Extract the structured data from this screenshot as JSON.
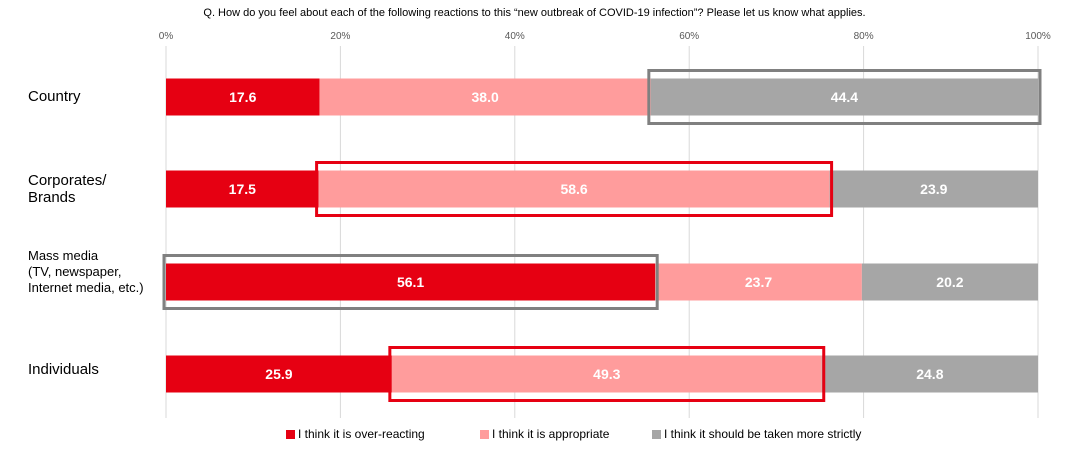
{
  "question": "Q. How do you feel about each of the following reactions to this “new outbreak of COVID-19 infection”? Please let us know what applies.",
  "chart_data": {
    "type": "bar",
    "orientation": "horizontal",
    "stacked": true,
    "percent": true,
    "categories": [
      "Country",
      "Corporates/ Brands",
      "Mass media (TV, newspaper, Internet media, etc.)",
      "Individuals"
    ],
    "category_lines": [
      [
        "Country"
      ],
      [
        "Corporates/",
        "Brands"
      ],
      [
        "Mass media",
        "(TV, newspaper,",
        "Internet media, etc.)"
      ],
      [
        "Individuals"
      ]
    ],
    "series": [
      {
        "name": "I think it is over-reacting",
        "color": "#e60012",
        "values": [
          17.6,
          17.5,
          56.1,
          25.9
        ]
      },
      {
        "name": "I think it is appropriate",
        "color": "#ff9c9c",
        "values": [
          38.0,
          58.6,
          23.7,
          49.3
        ]
      },
      {
        "name": "I think it should be taken more strictly",
        "color": "#a6a6a6",
        "values": [
          44.4,
          23.9,
          20.2,
          24.8
        ]
      }
    ],
    "xlim": [
      0,
      100
    ],
    "x_ticks": [
      "0%",
      "20%",
      "40%",
      "60%",
      "80%",
      "100%"
    ],
    "grid": true,
    "legend_position": "bottom",
    "highlights": [
      {
        "category": 0,
        "series": 2,
        "color": "#808080"
      },
      {
        "category": 1,
        "series": 1,
        "color": "#e60012"
      },
      {
        "category": 2,
        "series": 0,
        "color": "#808080"
      },
      {
        "category": 3,
        "series": 1,
        "color": "#e60012"
      }
    ]
  }
}
